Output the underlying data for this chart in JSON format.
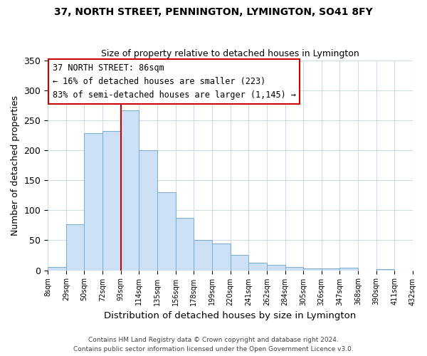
{
  "title": "37, NORTH STREET, PENNINGTON, LYMINGTON, SO41 8FY",
  "subtitle": "Size of property relative to detached houses in Lymington",
  "xlabel": "Distribution of detached houses by size in Lymington",
  "ylabel": "Number of detached properties",
  "bar_labels": [
    "8sqm",
    "29sqm",
    "50sqm",
    "72sqm",
    "93sqm",
    "114sqm",
    "135sqm",
    "156sqm",
    "178sqm",
    "199sqm",
    "220sqm",
    "241sqm",
    "262sqm",
    "284sqm",
    "305sqm",
    "326sqm",
    "347sqm",
    "368sqm",
    "390sqm",
    "411sqm",
    "432sqm"
  ],
  "bar_values": [
    5,
    77,
    228,
    232,
    266,
    200,
    130,
    87,
    50,
    44,
    25,
    12,
    9,
    6,
    3,
    3,
    4,
    0,
    2,
    0
  ],
  "bar_color": "#cce0f5",
  "bar_edge_color": "#7aaad0",
  "vline_x": 4,
  "vline_color": "#cc0000",
  "annotation_title": "37 NORTH STREET: 86sqm",
  "annotation_line1": "← 16% of detached houses are smaller (223)",
  "annotation_line2": "83% of semi-detached houses are larger (1,145) →",
  "annotation_box_color": "#ffffff",
  "annotation_box_edge": "#cc0000",
  "ylim": [
    0,
    350
  ],
  "yticks": [
    0,
    50,
    100,
    150,
    200,
    250,
    300,
    350
  ],
  "footer1": "Contains HM Land Registry data © Crown copyright and database right 2024.",
  "footer2": "Contains public sector information licensed under the Open Government Licence v3.0.",
  "background_color": "#ffffff",
  "grid_color": "#d0dce8"
}
